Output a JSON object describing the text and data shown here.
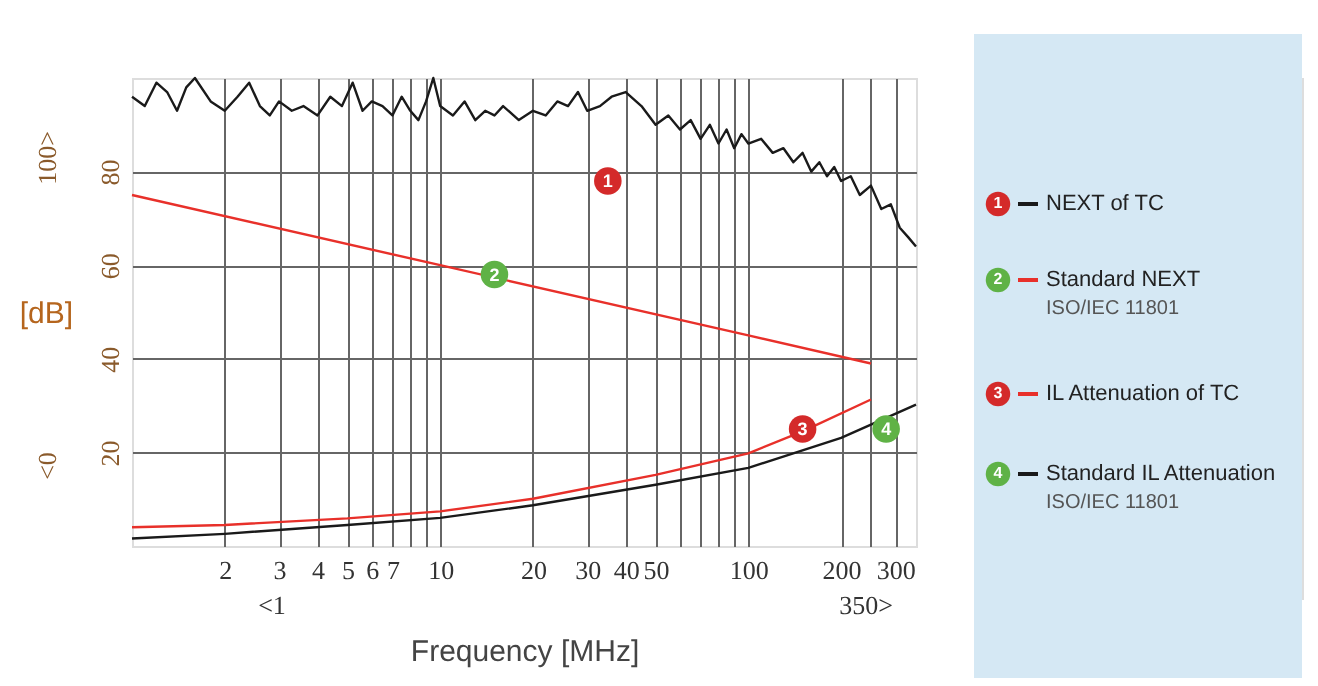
{
  "chart_data": {
    "type": "line",
    "xlabel": "Frequency [MHz]",
    "ylabel": "[dB]",
    "log": "x",
    "grid": true,
    "legend": "right",
    "marker": "none",
    "line_style": "solid",
    "xlim": [
      1,
      350
    ],
    "ylim": [
      0,
      100
    ],
    "xticks": [
      2,
      3,
      4,
      5,
      6,
      7,
      {
        "value": 8,
        "label": null
      },
      {
        "value": 9,
        "label": null
      },
      10,
      20,
      30,
      40,
      50,
      {
        "value": 60,
        "label": null
      },
      {
        "value": 70,
        "label": null
      },
      {
        "value": 80,
        "label": null
      },
      {
        "value": 90,
        "label": null
      },
      100,
      200,
      {
        "value": 250,
        "label": null
      },
      300
    ],
    "yticks": [
      20,
      40,
      60,
      80
    ],
    "series": [
      {
        "name": "NEXT of TC",
        "color": "#1a1a1a",
        "x": [
          1,
          1.1,
          1.2,
          1.3,
          1.4,
          1.5,
          1.6,
          1.8,
          2,
          2.2,
          2.4,
          2.6,
          2.8,
          3,
          3.3,
          3.6,
          4,
          4.4,
          4.8,
          5.2,
          5.6,
          6,
          6.5,
          7,
          7.5,
          8,
          8.5,
          9,
          9.5,
          10,
          11,
          12,
          13,
          14,
          15,
          16,
          18,
          20,
          22,
          24,
          26,
          28,
          30,
          33,
          36,
          40,
          45,
          50,
          55,
          60,
          65,
          70,
          75,
          80,
          85,
          90,
          95,
          100,
          110,
          120,
          130,
          140,
          150,
          160,
          170,
          180,
          190,
          200,
          215,
          230,
          250,
          270,
          290,
          310,
          330,
          350
        ],
        "values": [
          96,
          94,
          99,
          97,
          93,
          98,
          100,
          95,
          93,
          96,
          99,
          94,
          92,
          95,
          93,
          94,
          92,
          96,
          94,
          99,
          93,
          95,
          94,
          92,
          96,
          93,
          91,
          95,
          100,
          94,
          92,
          95,
          91,
          93,
          92,
          94,
          91,
          93,
          92,
          95,
          94,
          97,
          93,
          94,
          96,
          97,
          94,
          90,
          92,
          89,
          91,
          87,
          90,
          86,
          89,
          85,
          88,
          86,
          87,
          84,
          85,
          82,
          84,
          80,
          82,
          79,
          81,
          78,
          79,
          75,
          77,
          72,
          73,
          68,
          66,
          64
        ]
      },
      {
        "name": "Standard NEXT\nISO/IEC 11801",
        "color": "#e8302a",
        "x": [
          1,
          10,
          100,
          250
        ],
        "values": [
          75,
          60,
          45,
          39
        ]
      },
      {
        "name": "IL Attenuation of TC",
        "color": "#e8302a",
        "x": [
          1,
          2,
          5,
          10,
          20,
          50,
          100,
          150,
          250
        ],
        "values": [
          4.0,
          4.5,
          5.9,
          7.4,
          10.1,
          15.2,
          19.8,
          24.5,
          31.3
        ]
      },
      {
        "name": "Standard IL Attenuation\nISO/IEC 11801",
        "color": "#1a1a1a",
        "x": [
          1,
          2,
          5,
          10,
          20,
          50,
          100,
          200,
          350
        ],
        "values": [
          1.6,
          2.6,
          4.5,
          6.0,
          8.7,
          13.1,
          16.7,
          23.1,
          30.2
        ]
      }
    ],
    "annotations": [
      {
        "text": "1",
        "x": 35,
        "y": 78
      },
      {
        "text": "2",
        "x": 15,
        "y": 58
      },
      {
        "text": "3",
        "x": 150,
        "y": 25
      },
      {
        "text": "4",
        "x": 280,
        "y": 25
      },
      "100>",
      "<0",
      "<1",
      "350>"
    ]
  }
}
